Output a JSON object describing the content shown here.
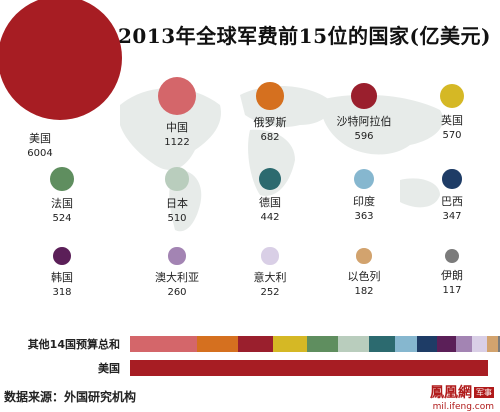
{
  "title": "2013年全球军费前15位的国家(亿美元)",
  "chart_data": {
    "type": "bubble",
    "unit": "亿美元",
    "countries": [
      {
        "name": "美国",
        "value": 6004,
        "color": "#a71d23"
      },
      {
        "name": "中国",
        "value": 1122,
        "color": "#d4666a"
      },
      {
        "name": "俄罗斯",
        "value": 682,
        "color": "#d5701f"
      },
      {
        "name": "沙特阿拉伯",
        "value": 596,
        "color": "#9a1f2d"
      },
      {
        "name": "英国",
        "value": 570,
        "color": "#d5b825"
      },
      {
        "name": "法国",
        "value": 524,
        "color": "#5f8e5f"
      },
      {
        "name": "日本",
        "value": 510,
        "color": "#b9cdbd"
      },
      {
        "name": "德国",
        "value": 442,
        "color": "#2c6a6f"
      },
      {
        "name": "印度",
        "value": 363,
        "color": "#86b7cf"
      },
      {
        "name": "巴西",
        "value": 347,
        "color": "#1e3c66"
      },
      {
        "name": "韩国",
        "value": 318,
        "color": "#5b1f58"
      },
      {
        "name": "澳大利亚",
        "value": 260,
        "color": "#a384b3"
      },
      {
        "name": "意大利",
        "value": 252,
        "color": "#d9cfe6"
      },
      {
        "name": "以色列",
        "value": 182,
        "color": "#d2a36e"
      },
      {
        "name": "伊朗",
        "value": 117,
        "color": "#7b7b7b"
      }
    ],
    "bars": [
      {
        "label": "其他14国预算总和",
        "segments_of": "countries_except_first"
      },
      {
        "label": "美国",
        "segments_of": "first"
      }
    ]
  },
  "footer": {
    "source": "数据来源：外国研究机构",
    "logo_main": "鳳凰網",
    "logo_tag": "军事",
    "logo_url": "mil.ifeng.com"
  }
}
